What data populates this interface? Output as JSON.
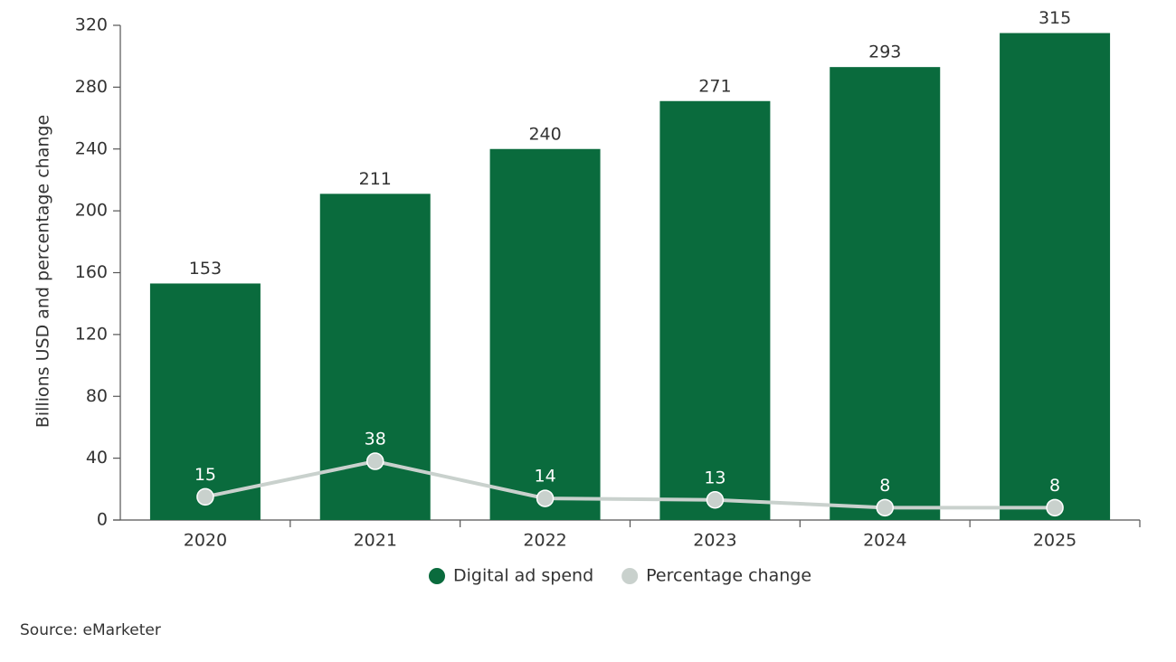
{
  "chart_data": {
    "type": "bar",
    "y_label": "Billions USD and percentage change",
    "categories": [
      "2020",
      "2021",
      "2022",
      "2023",
      "2024",
      "2025"
    ],
    "series": [
      {
        "name": "Digital ad spend",
        "type": "bar",
        "color": "#0a6b3d",
        "values": [
          153,
          211,
          240,
          271,
          293,
          315
        ]
      },
      {
        "name": "Percentage change",
        "type": "line",
        "color": "#c9d1cd",
        "values": [
          15,
          38,
          14,
          13,
          8,
          8
        ]
      }
    ],
    "ylim": [
      0,
      320
    ],
    "yticks": [
      0,
      40,
      80,
      120,
      160,
      200,
      240,
      280,
      320
    ],
    "grid": false,
    "legend": "bottom",
    "source": "Source: eMarketer"
  }
}
